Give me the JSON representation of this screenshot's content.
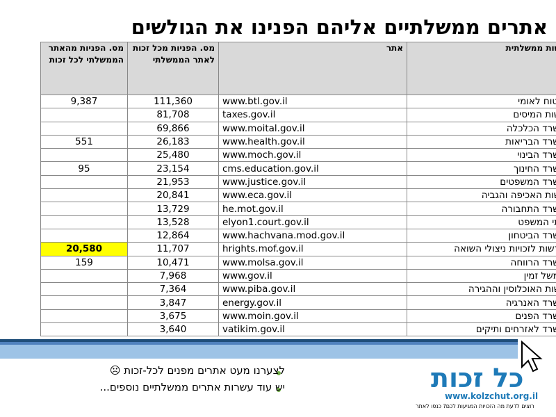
{
  "title": "אתרים ממשלתיים אליהם הפנינו את הגולשים",
  "table": {
    "header": [
      "רשות ממשלתית",
      "אתר",
      "מס. הפניות מכל זכות לאתר הממשלתי",
      "מס. הפניות מהאתר הממשלתי לכל זכות"
    ],
    "rows": [
      [
        "ביטוח לאומי",
        "www.btl.gov.il",
        "111,360",
        "9,387"
      ],
      [
        "רשות המיסים",
        "taxes.gov.il",
        "81,708",
        null
      ],
      [
        "משרד הכלכלה",
        "www.moital.gov.il",
        "69,866",
        null
      ],
      [
        "משרד הבריאות",
        "www.health.gov.il",
        "26,183",
        "551"
      ],
      [
        "משרד הבינוי",
        "www.moch.gov.il",
        "25,480",
        null
      ],
      [
        "משרד החינוך",
        "cms.education.gov.il",
        "23,154",
        "95"
      ],
      [
        "משרד המשפטים",
        "www.justice.gov.il",
        "21,953",
        null
      ],
      [
        "רשות האכיפה והגביה",
        "www.eca.gov.il",
        "20,841",
        null
      ],
      [
        "משרד התחבורה",
        "he.mot.gov.il",
        "13,729",
        null
      ],
      [
        "בתי המשפט",
        "elyon1.court.gov.il",
        "13,528",
        null
      ],
      [
        "משרד הביטחון",
        "www.hachvana.mod.gov.il",
        "12,864",
        null
      ],
      [
        "הרשות לזכויות ניצולי השואה",
        "hrights.mof.gov.il",
        "11,707",
        "20,580"
      ],
      [
        "משרד הרווחה",
        "www.molsa.gov.il",
        "10,471",
        "159"
      ],
      [
        "ממשל זמין",
        "www.gov.il",
        "7,968",
        null
      ],
      [
        "רשות האוכלוסין וההגירה",
        "www.piba.gov.il",
        "7,364",
        null
      ],
      [
        "משרד האנרגיה",
        "energy.gov.il",
        "3,847",
        null
      ],
      [
        "משרד הפנים",
        "www.moin.gov.il",
        "3,675",
        null
      ],
      [
        "משרד לאזרחים ותיקים",
        "vatikim.gov.il",
        "3,640",
        null
      ]
    ]
  },
  "bullets": [
    "לצערנו מעט אתרים מפנים לכל-זכות ☹",
    "יש עוד עשרות אתרים ממשלתיים נוספים..."
  ],
  "logo": {
    "name": "כל זכות",
    "url": "www.kolzchut.org.il",
    "tagline": "רוצים לדעת מה הזכויות המגיעות לכם? כנסו לאתר"
  }
}
